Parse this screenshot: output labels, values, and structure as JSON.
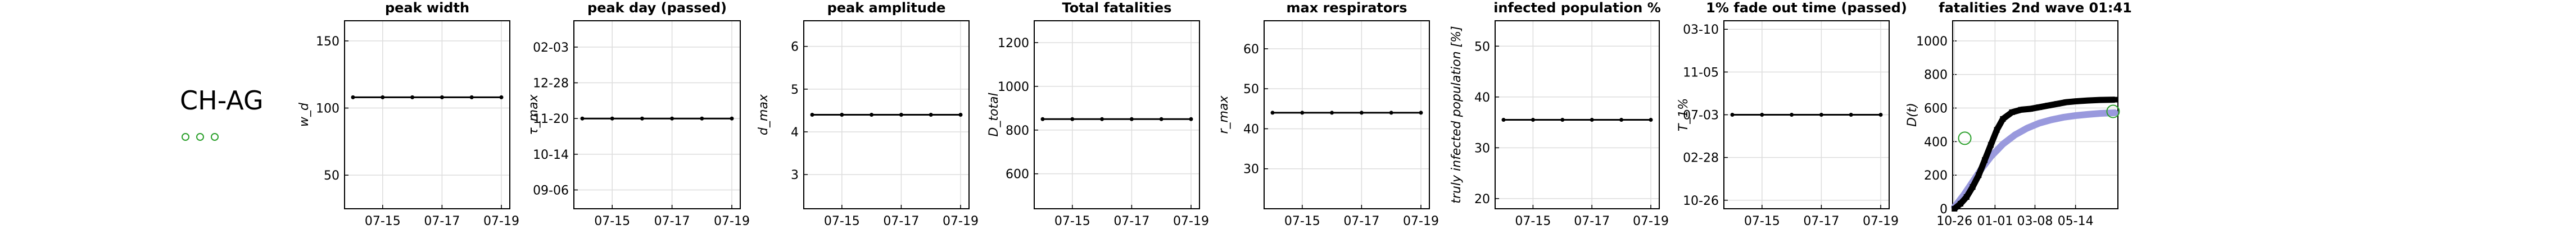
{
  "region": "CH-AG",
  "region_markers": 3,
  "colors": {
    "line": "#000000",
    "grid": "#dddddd",
    "fit": "#9999dd",
    "marker": "#2ca02c"
  },
  "chart_data": [
    {
      "type": "line",
      "title": "peak width",
      "ylabel": "w_d",
      "xticks": [
        "07-15",
        "07-17",
        "07-19"
      ],
      "x": [
        0,
        1,
        2,
        3,
        4,
        5
      ],
      "yticks": [
        "50",
        "100",
        "150"
      ],
      "ytick_values": [
        50,
        100,
        150
      ],
      "ylim": [
        25,
        165
      ],
      "values": [
        108,
        108,
        108,
        108,
        108,
        108
      ]
    },
    {
      "type": "line",
      "title": "peak day (passed)",
      "ylabel": "τ_max",
      "xticks": [
        "07-15",
        "07-17",
        "07-19"
      ],
      "x": [
        0,
        1,
        2,
        3,
        4,
        5
      ],
      "yticks": [
        "09-06",
        "10-14",
        "11-20",
        "12-28",
        "02-03"
      ],
      "ytick_values": [
        0,
        38,
        76,
        114,
        152
      ],
      "ylim": [
        -20,
        180
      ],
      "values": [
        76,
        76,
        76,
        76,
        76,
        76
      ]
    },
    {
      "type": "line",
      "title": "peak amplitude",
      "ylabel": "d_max",
      "xticks": [
        "07-15",
        "07-17",
        "07-19"
      ],
      "x": [
        0,
        1,
        2,
        3,
        4,
        5
      ],
      "yticks": [
        "3",
        "4",
        "5",
        "6"
      ],
      "ytick_values": [
        3,
        4,
        5,
        6
      ],
      "ylim": [
        2.2,
        6.6
      ],
      "values": [
        4.4,
        4.4,
        4.4,
        4.4,
        4.4,
        4.4
      ]
    },
    {
      "type": "line",
      "title": "Total fatalities",
      "ylabel": "D_total",
      "xticks": [
        "07-15",
        "07-17",
        "07-19"
      ],
      "x": [
        0,
        1,
        2,
        3,
        4,
        5
      ],
      "yticks": [
        "600",
        "800",
        "1000",
        "1200"
      ],
      "ytick_values": [
        600,
        800,
        1000,
        1200
      ],
      "ylim": [
        440,
        1300
      ],
      "values": [
        850,
        850,
        850,
        850,
        850,
        850
      ]
    },
    {
      "type": "line",
      "title": "max respirators",
      "ylabel": "r_max",
      "xticks": [
        "07-15",
        "07-17",
        "07-19"
      ],
      "x": [
        0,
        1,
        2,
        3,
        4,
        5
      ],
      "yticks": [
        "30",
        "40",
        "50",
        "60"
      ],
      "ytick_values": [
        30,
        40,
        50,
        60
      ],
      "ylim": [
        20,
        67
      ],
      "values": [
        44,
        44,
        44,
        44,
        44,
        44
      ]
    },
    {
      "type": "line",
      "title": "infected population %",
      "ylabel": "truly infected population [%]",
      "xticks": [
        "07-15",
        "07-17",
        "07-19"
      ],
      "x": [
        0,
        1,
        2,
        3,
        4,
        5
      ],
      "yticks": [
        "20",
        "30",
        "40",
        "50"
      ],
      "ytick_values": [
        20,
        30,
        40,
        50
      ],
      "ylim": [
        18,
        55
      ],
      "values": [
        35.5,
        35.5,
        35.5,
        35.5,
        35.5,
        35.5
      ]
    },
    {
      "type": "line",
      "title": "1% fade out time (passed)",
      "ylabel": "T_1%",
      "xticks": [
        "07-15",
        "07-17",
        "07-19"
      ],
      "x": [
        0,
        1,
        2,
        3,
        4,
        5
      ],
      "yticks": [
        "10-26",
        "02-28",
        "07-03",
        "11-05",
        "03-10"
      ],
      "ytick_values": [
        0,
        125,
        250,
        375,
        500
      ],
      "ylim": [
        -25,
        525
      ],
      "values": [
        250,
        250,
        250,
        250,
        250,
        250
      ]
    },
    {
      "type": "line",
      "title": "fatalities 2nd wave 01:41",
      "ylabel": "D(t)",
      "xticks": [
        "10-26",
        "01-01",
        "03-08",
        "05-14"
      ],
      "xtick_values": [
        0,
        67,
        133,
        200
      ],
      "yticks": [
        "0",
        "200",
        "400",
        "600",
        "800",
        "1000"
      ],
      "ytick_values": [
        0,
        200,
        400,
        600,
        800,
        1000
      ],
      "xlim": [
        -3,
        270
      ],
      "ylim": [
        0,
        1120
      ],
      "series": [
        {
          "x": [
            0,
            10,
            20,
            30,
            40,
            50,
            60,
            70,
            80,
            95,
            110,
            125,
            140,
            155,
            170,
            185,
            200,
            220,
            240,
            265
          ],
          "values": [
            0,
            30,
            70,
            130,
            200,
            290,
            380,
            470,
            535,
            575,
            590,
            595,
            605,
            615,
            625,
            635,
            640,
            645,
            648,
            650
          ]
        },
        {
          "x": [
            0,
            15,
            30,
            45,
            60,
            80,
            100,
            120,
            140,
            160,
            180,
            200,
            220,
            240,
            265
          ],
          "values": [
            10,
            80,
            160,
            240,
            310,
            385,
            440,
            480,
            510,
            530,
            545,
            555,
            562,
            568,
            572
          ]
        }
      ],
      "markers": [
        {
          "x": 17,
          "value": 420
        },
        {
          "x": 262,
          "value": 580
        }
      ]
    }
  ]
}
